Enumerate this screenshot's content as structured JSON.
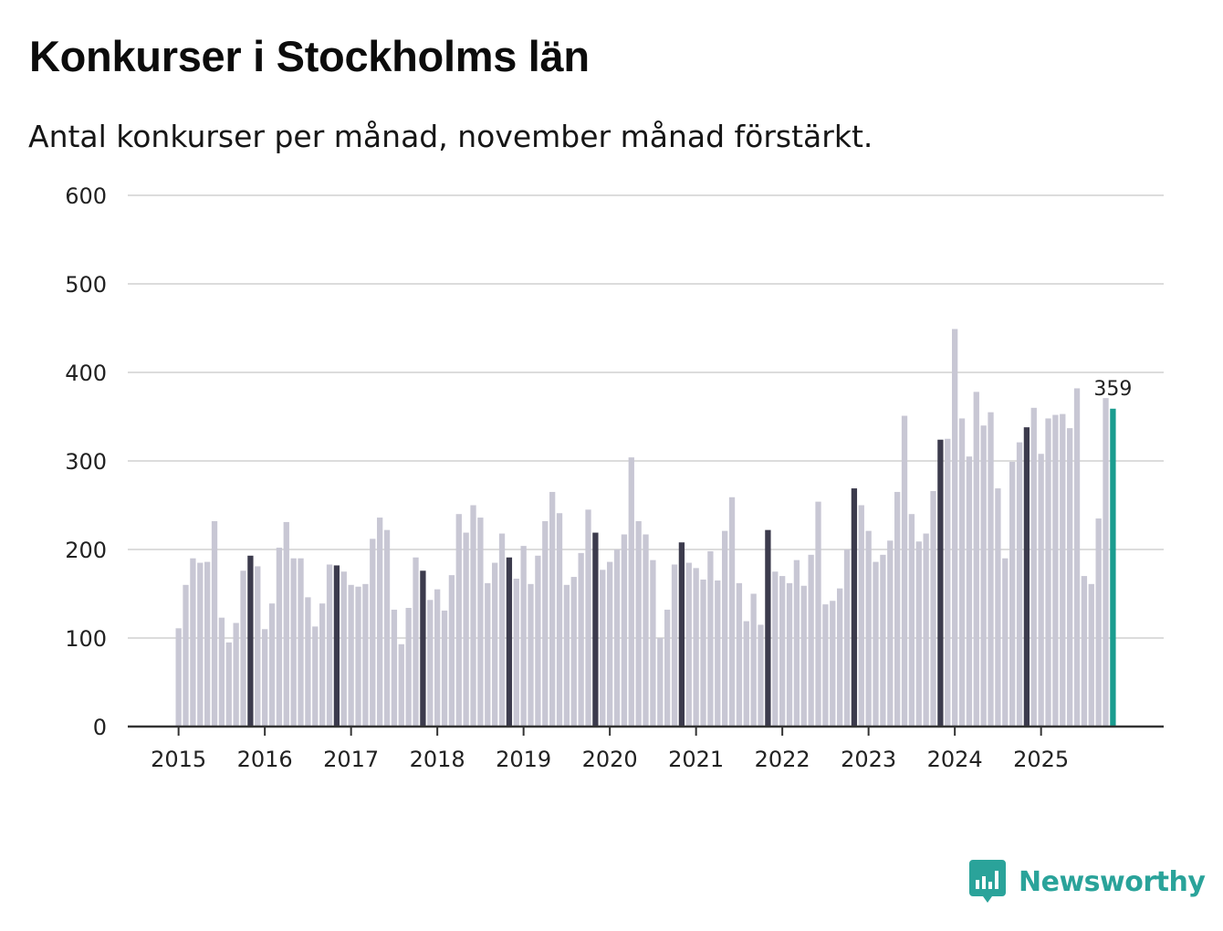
{
  "title": "Konkurser i Stockholms län",
  "subtitle": "Antal konkurser per månad, november månad förstärkt.",
  "brand": {
    "name": "Newsworthy",
    "icon": "bar-chart-speech-bubble-icon",
    "color": "#2aa39a"
  },
  "colors": {
    "regular": "#c8c7d4",
    "highlight_month": "#3c3b4d",
    "latest": "#1a9c8f",
    "grid": "#dcdcdc",
    "axis": "#333333"
  },
  "chart_data": {
    "type": "bar",
    "title": "Konkurser i Stockholms län",
    "subtitle": "Antal konkurser per månad, november månad förstärkt.",
    "xlabel": "",
    "ylabel": "",
    "ylim": [
      0,
      600
    ],
    "yticks": [
      0,
      100,
      200,
      300,
      400,
      500,
      600
    ],
    "xtick_labels": [
      "2015",
      "2016",
      "2017",
      "2018",
      "2019",
      "2020",
      "2021",
      "2022",
      "2023",
      "2024",
      "2025"
    ],
    "start": "2015-01",
    "highlight_month": "november",
    "grid": true,
    "latest_label": "359",
    "values": [
      111,
      160,
      190,
      185,
      186,
      232,
      123,
      95,
      117,
      176,
      193,
      181,
      110,
      139,
      202,
      231,
      190,
      190,
      146,
      113,
      139,
      183,
      182,
      175,
      160,
      158,
      161,
      212,
      236,
      222,
      132,
      93,
      134,
      191,
      176,
      143,
      155,
      131,
      171,
      240,
      219,
      250,
      236,
      162,
      185,
      218,
      191,
      167,
      204,
      161,
      193,
      232,
      265,
      241,
      160,
      169,
      196,
      245,
      219,
      177,
      186,
      200,
      217,
      304,
      232,
      217,
      188,
      100,
      132,
      183,
      208,
      185,
      179,
      166,
      198,
      165,
      221,
      259,
      162,
      119,
      150,
      115,
      222,
      175,
      170,
      162,
      188,
      159,
      194,
      254,
      138,
      142,
      156,
      200,
      269,
      250,
      221,
      186,
      194,
      210,
      265,
      351,
      240,
      209,
      218,
      266,
      324,
      325,
      449,
      348,
      305,
      378,
      340,
      355,
      269,
      190,
      299,
      321,
      338,
      360,
      308,
      348,
      352,
      353,
      337,
      382,
      170,
      161,
      235,
      371,
      359
    ]
  }
}
